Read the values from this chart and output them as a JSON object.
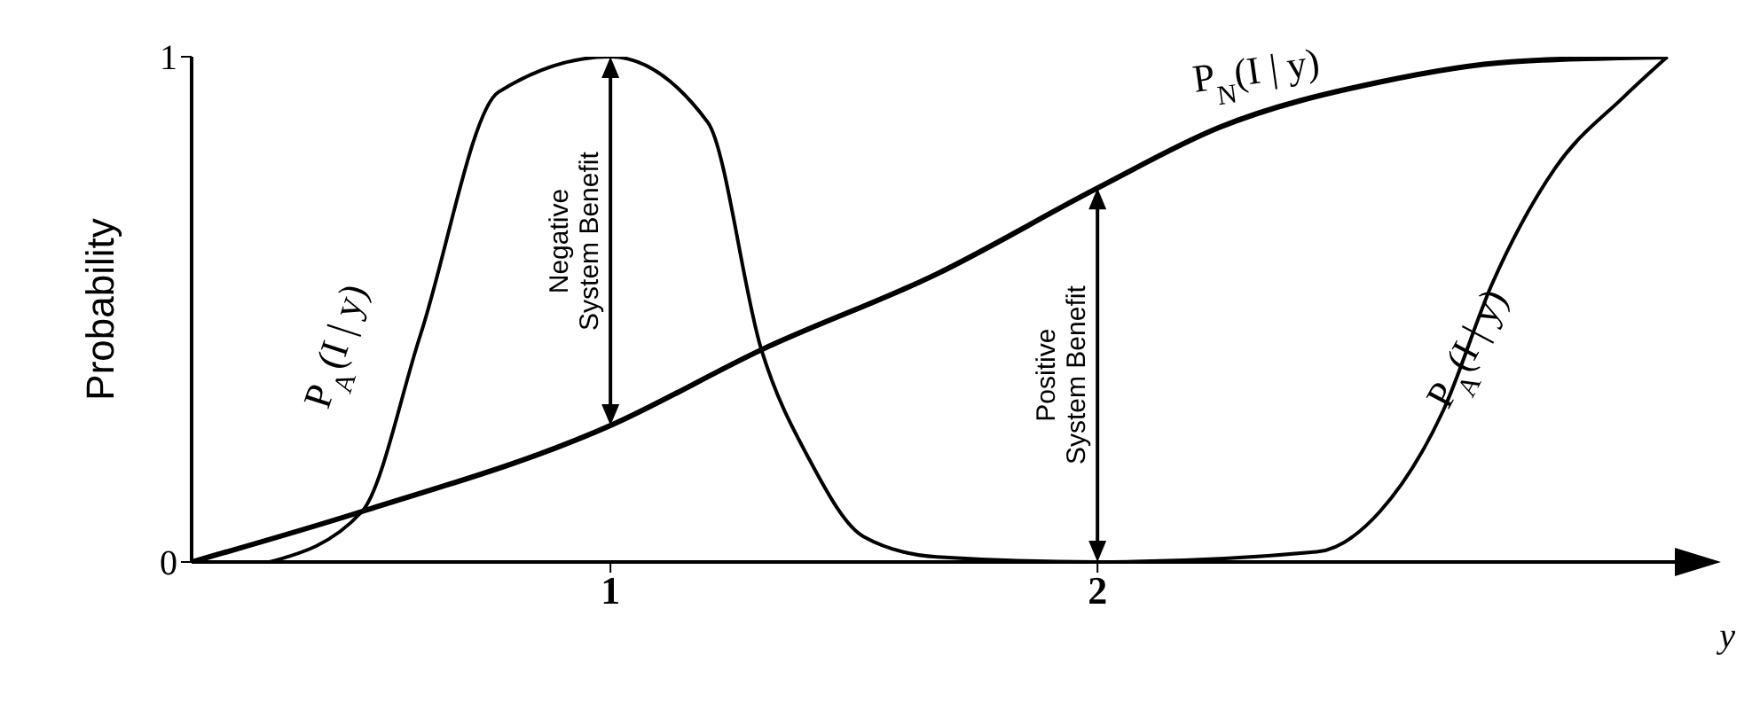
{
  "chart_data": {
    "type": "line",
    "ylabel": "Probability",
    "xlabel": "y",
    "xlim": [
      0.14,
      3.2
    ],
    "xticks": [
      1,
      2
    ],
    "ylim": [
      0,
      1
    ],
    "yticks": [
      0,
      1
    ],
    "grid": false,
    "legend": false,
    "marker": "none",
    "line_style": "solid",
    "series": [
      {
        "name": "P$_{N}$(I | y)",
        "color": "#000000",
        "x": [
          0.14,
          0.49,
          1.0,
          1.31,
          1.67,
          2.0,
          2.25,
          2.58,
          2.85,
          3.17
        ],
        "values": [
          0,
          0.1,
          0.27,
          0.42,
          0.57,
          0.74,
          0.86,
          0.95,
          0.99,
          1.0
        ]
      },
      {
        "name": "P$_{A}$(I | y)",
        "color": "#000000",
        "x": [
          0.3,
          0.49,
          0.61,
          0.77,
          1.0,
          1.2,
          1.31,
          1.41,
          1.52,
          1.67,
          2.0,
          2.45,
          2.58,
          2.71,
          2.81,
          2.94,
          3.08,
          3.17
        ],
        "values": [
          0,
          0.1,
          0.45,
          0.93,
          1.0,
          0.87,
          0.42,
          0.2,
          0.05,
          0.01,
          0,
          0.02,
          0.1,
          0.3,
          0.55,
          0.78,
          0.92,
          1.0
        ]
      }
    ],
    "annotations": [
      "Negative System Benefit",
      "Positive System Benefit",
      {
        "text": "P$_{A}$(I | y)",
        "x": 2.72,
        "y": 0.3
      }
    ]
  }
}
